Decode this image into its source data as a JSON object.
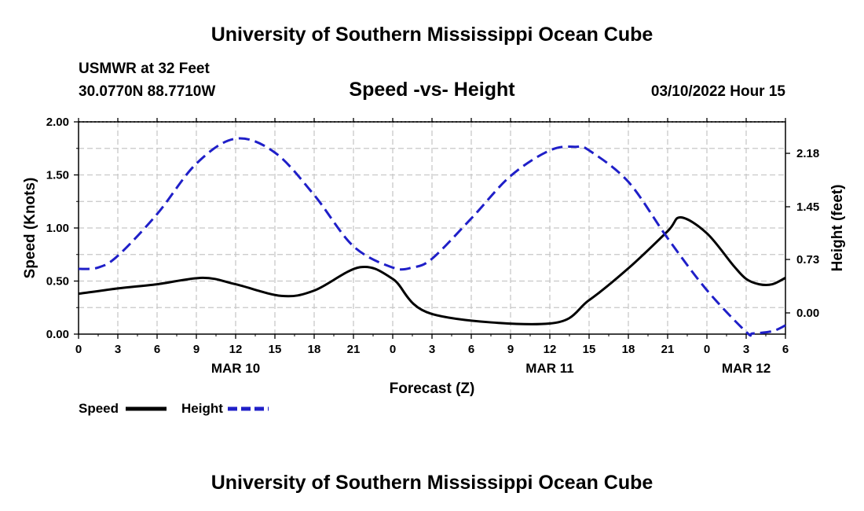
{
  "header": {
    "title_top": "University of Southern Mississippi Ocean Cube",
    "title_bottom": "University of Southern Mississippi Ocean Cube",
    "station": "USMWR at 32 Feet",
    "coords": "30.0770N  88.7710W",
    "datetime": "03/10/2022 Hour 15"
  },
  "colors": {
    "speed": "#000000",
    "height": "#1f1fc8",
    "grid": "#c8c8c8"
  },
  "chart_data": {
    "type": "line",
    "title": "Speed -vs- Height",
    "xlabel": "Forecast (Z)",
    "ylabel": "Speed (Knots)",
    "ylabel_right": "Height (feet)",
    "grid": true,
    "legend_position": "bottom-left",
    "x_range": [
      0,
      54
    ],
    "x_ticks": [
      {
        "x": 0,
        "label": "0"
      },
      {
        "x": 3,
        "label": "3"
      },
      {
        "x": 6,
        "label": "6"
      },
      {
        "x": 9,
        "label": "9"
      },
      {
        "x": 12,
        "label": "12"
      },
      {
        "x": 15,
        "label": "15"
      },
      {
        "x": 18,
        "label": "18"
      },
      {
        "x": 21,
        "label": "21"
      },
      {
        "x": 24,
        "label": "0"
      },
      {
        "x": 27,
        "label": "3"
      },
      {
        "x": 30,
        "label": "6"
      },
      {
        "x": 33,
        "label": "9"
      },
      {
        "x": 36,
        "label": "12"
      },
      {
        "x": 39,
        "label": "15"
      },
      {
        "x": 42,
        "label": "18"
      },
      {
        "x": 45,
        "label": "21"
      },
      {
        "x": 48,
        "label": "0"
      },
      {
        "x": 51,
        "label": "3"
      },
      {
        "x": 54,
        "label": "6"
      }
    ],
    "date_labels": [
      {
        "x": 12,
        "label": "MAR 10"
      },
      {
        "x": 36,
        "label": "MAR 11"
      },
      {
        "x": 51,
        "label": "MAR 12"
      }
    ],
    "y_left_range": [
      0,
      2
    ],
    "y_left_ticks": [
      "0.00",
      "0.50",
      "1.00",
      "1.50",
      "2.00"
    ],
    "y_right_range": [
      -0.29,
      2.61
    ],
    "y_right_ticks": [
      {
        "value": 0.0,
        "label": "0.00"
      },
      {
        "value": 0.73,
        "label": "0.73"
      },
      {
        "value": 1.45,
        "label": "1.45"
      },
      {
        "value": 2.18,
        "label": "2.18"
      }
    ],
    "series": [
      {
        "name": "Speed",
        "axis": "left",
        "style": "solid",
        "x": [
          0,
          3,
          6,
          9.5,
          12,
          15.5,
          18,
          21.5,
          24,
          27,
          36,
          39,
          42,
          45,
          46,
          48,
          50,
          51,
          52,
          53,
          54
        ],
        "values": [
          0.38,
          0.43,
          0.47,
          0.53,
          0.47,
          0.36,
          0.41,
          0.63,
          0.52,
          0.19,
          0.1,
          0.32,
          0.62,
          0.97,
          1.1,
          0.95,
          0.65,
          0.52,
          0.47,
          0.47,
          0.53
        ]
      },
      {
        "name": "Height",
        "axis": "right",
        "style": "dashed",
        "x": [
          0,
          1.5,
          3,
          6,
          9,
          12,
          15,
          18,
          21,
          24,
          25.5,
          27,
          30,
          33,
          36,
          38,
          39,
          42,
          45,
          48,
          51,
          51.5,
          53,
          54
        ],
        "values": [
          0.6,
          0.62,
          0.78,
          1.35,
          2.04,
          2.38,
          2.19,
          1.61,
          0.91,
          0.62,
          0.62,
          0.74,
          1.29,
          1.87,
          2.22,
          2.27,
          2.22,
          1.79,
          1.02,
          0.31,
          -0.26,
          -0.28,
          -0.25,
          -0.17
        ]
      }
    ]
  }
}
